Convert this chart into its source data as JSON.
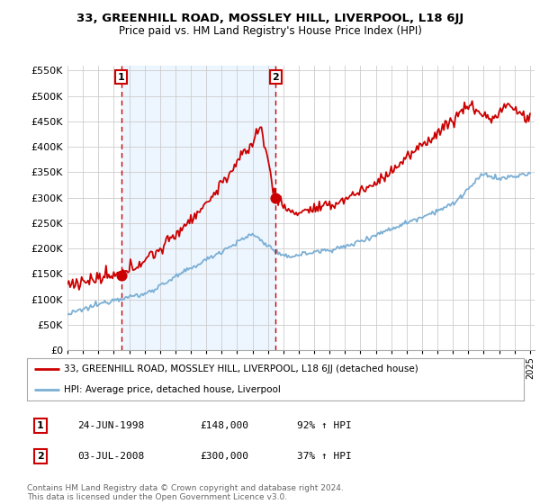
{
  "title": "33, GREENHILL ROAD, MOSSLEY HILL, LIVERPOOL, L18 6JJ",
  "subtitle": "Price paid vs. HM Land Registry's House Price Index (HPI)",
  "legend_label_red": "33, GREENHILL ROAD, MOSSLEY HILL, LIVERPOOL, L18 6JJ (detached house)",
  "legend_label_blue": "HPI: Average price, detached house, Liverpool",
  "annotation1_date": "24-JUN-1998",
  "annotation1_price": "£148,000",
  "annotation1_hpi": "92% ↑ HPI",
  "annotation1_year": 1998.48,
  "annotation1_value": 148000,
  "annotation2_date": "03-JUL-2008",
  "annotation2_price": "£300,000",
  "annotation2_hpi": "37% ↑ HPI",
  "annotation2_year": 2008.51,
  "annotation2_value": 300000,
  "footer": "Contains HM Land Registry data © Crown copyright and database right 2024.\nThis data is licensed under the Open Government Licence v3.0.",
  "ylim": [
    0,
    560000
  ],
  "yticks": [
    0,
    50000,
    100000,
    150000,
    200000,
    250000,
    300000,
    350000,
    400000,
    450000,
    500000,
    550000
  ],
  "red_color": "#cc0000",
  "blue_color": "#7bafd4",
  "bg_color": "#ffffff",
  "grid_color": "#cccccc",
  "shaded_color": "#ddeeff"
}
